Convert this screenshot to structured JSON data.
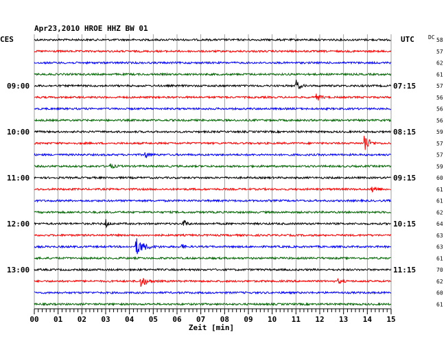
{
  "chart_data": {
    "type": "line",
    "title": "Apr23,2010   HROE HHZ BW 01",
    "left_header": "CES",
    "right_header": "UTC",
    "dc_header": "DC",
    "xlabel": "Zeit [min]",
    "x_ticks": [
      "00",
      "01",
      "02",
      "03",
      "04",
      "05",
      "06",
      "07",
      "08",
      "09",
      "10",
      "11",
      "12",
      "13",
      "14",
      "15"
    ],
    "xlim": [
      0,
      15
    ],
    "trace_count": 24,
    "trace_colors": [
      "#000000",
      "#ff0000",
      "#0000ff",
      "#006400"
    ],
    "left_time_labels": [
      {
        "trace": 4,
        "text": "09:00"
      },
      {
        "trace": 8,
        "text": "10:00"
      },
      {
        "trace": 12,
        "text": "11:00"
      },
      {
        "trace": 16,
        "text": "12:00"
      },
      {
        "trace": 20,
        "text": "13:00"
      }
    ],
    "right_time_labels": [
      {
        "trace": 4,
        "text": "07:15"
      },
      {
        "trace": 8,
        "text": "08:15"
      },
      {
        "trace": 12,
        "text": "09:15"
      },
      {
        "trace": 16,
        "text": "10:15"
      },
      {
        "trace": 20,
        "text": "11:15"
      }
    ],
    "dc_values": [
      "58",
      "57",
      "62",
      "61",
      "57",
      "56",
      "56",
      "56",
      "59",
      "57",
      "57",
      "59",
      "60",
      "61",
      "61",
      "62",
      "64",
      "63",
      "63",
      "61",
      "70",
      "62",
      "60",
      "61"
    ],
    "events": [
      {
        "trace": 4,
        "minute": 11.0,
        "amplitude": 9,
        "duration": 0.5
      },
      {
        "trace": 5,
        "minute": 11.9,
        "amplitude": 5,
        "duration": 0.5
      },
      {
        "trace": 9,
        "minute": 13.9,
        "amplitude": 14,
        "duration": 0.6
      },
      {
        "trace": 10,
        "minute": 4.7,
        "amplitude": 4,
        "duration": 0.6
      },
      {
        "trace": 11,
        "minute": 3.2,
        "amplitude": 3,
        "duration": 0.6
      },
      {
        "trace": 13,
        "minute": 14.2,
        "amplitude": 5,
        "duration": 0.7
      },
      {
        "trace": 16,
        "minute": 3.0,
        "amplitude": 6,
        "duration": 0.4
      },
      {
        "trace": 16,
        "minute": 6.3,
        "amplitude": 5,
        "duration": 0.4
      },
      {
        "trace": 18,
        "minute": 4.3,
        "amplitude": 12,
        "duration": 1.2
      },
      {
        "trace": 18,
        "minute": 6.2,
        "amplitude": 4,
        "duration": 0.4
      },
      {
        "trace": 21,
        "minute": 4.5,
        "amplitude": 8,
        "duration": 0.8
      },
      {
        "trace": 21,
        "minute": 12.8,
        "amplitude": 3,
        "duration": 0.5
      }
    ]
  }
}
